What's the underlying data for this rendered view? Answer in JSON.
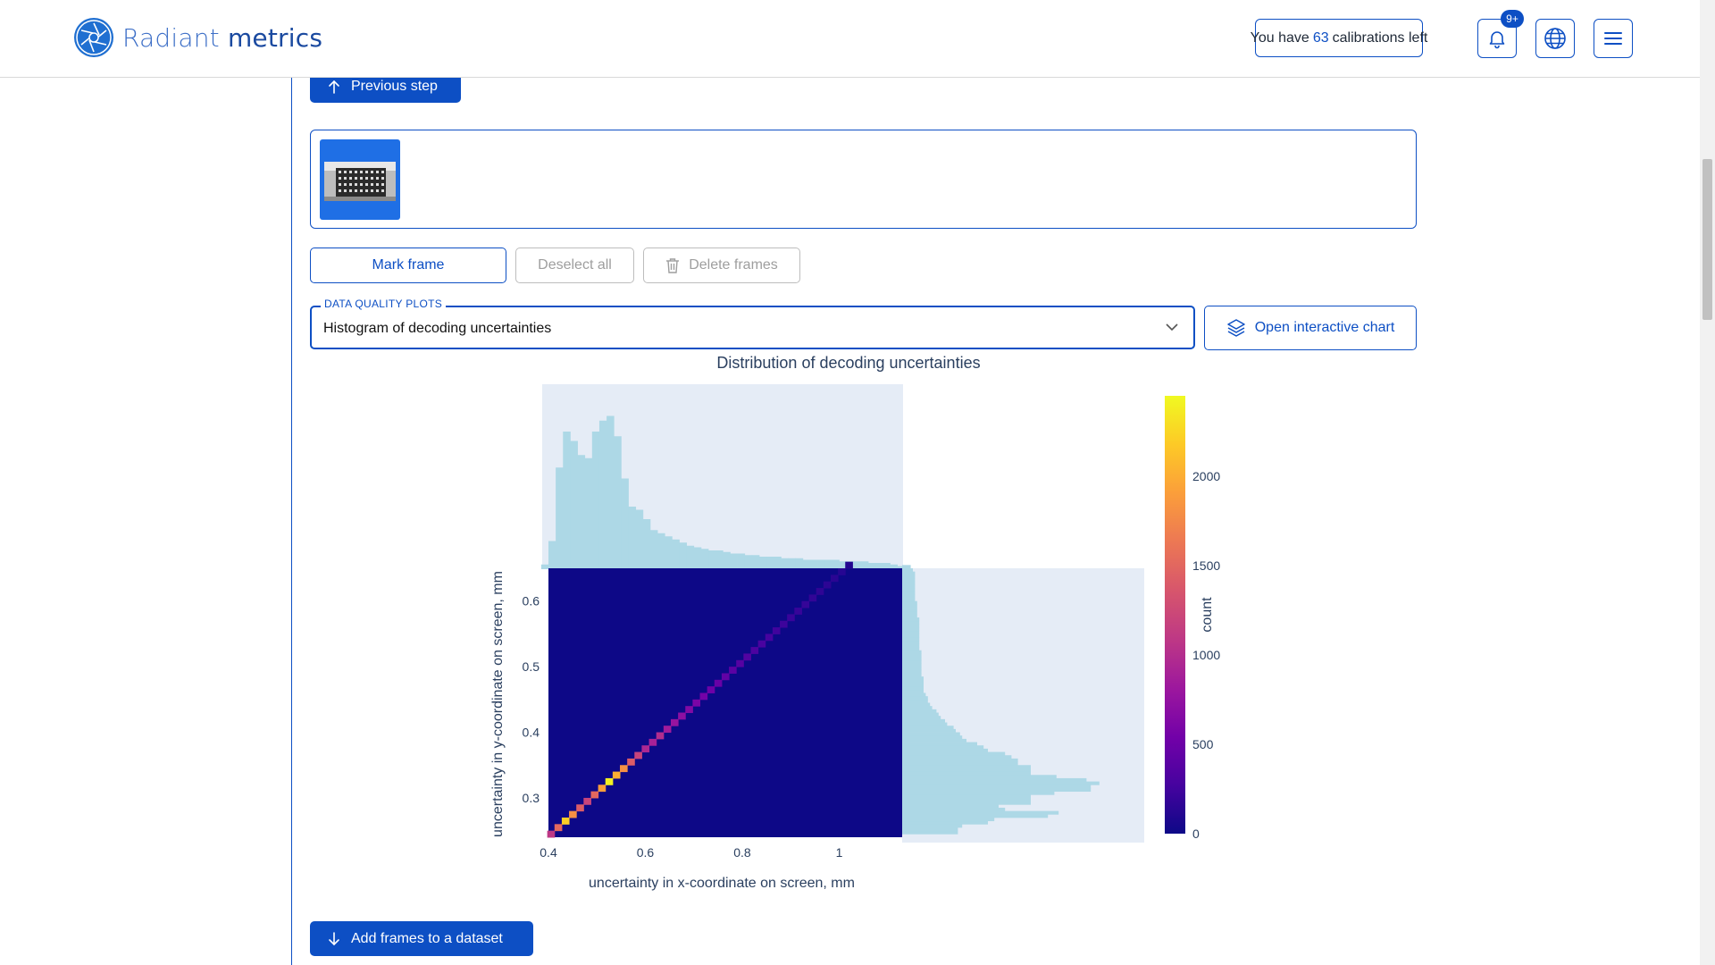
{
  "header": {
    "logo_part1": "Radiant",
    "logo_part2": "metrics",
    "calib_prefix": "You have",
    "calib_count": "63",
    "calib_suffix": "calibrations left",
    "notification_badge": "9+",
    "icons": [
      "logo-shutter-icon",
      "bell-icon",
      "globe-icon",
      "menu-icon"
    ]
  },
  "actions": {
    "previous_step": "Previous step",
    "mark_frame": "Mark frame",
    "deselect_all": "Deselect all",
    "delete_frames": "Delete frames",
    "add_frames": "Add frames to a dataset"
  },
  "plots": {
    "legend": "DATA QUALITY PLOTS",
    "selected": "Histogram of decoding uncertainties",
    "open_interactive": "Open interactive chart"
  },
  "colors": {
    "accent": "#0d4fc4",
    "histogram": "#add8e6",
    "plot_bg": "#e5ecf6",
    "heatmap_low": "#0d0887",
    "heatmap_high": "#f0f921"
  },
  "chart_data": {
    "type": "heatmap",
    "title": "Distribution of decoding uncertainties",
    "xlabel": "uncertainty in x-coordinate on screen, mm",
    "ylabel": "uncertainty in y-coordinate on screen, mm",
    "xlim": [
      0.4,
      1.13
    ],
    "ylim": [
      0.24,
      0.65
    ],
    "x_ticks": [
      "0.4",
      "0.6",
      "0.8",
      "1"
    ],
    "x_tick_values": [
      0.4,
      0.6,
      0.8,
      1.0
    ],
    "y_ticks": [
      "0.3",
      "0.4",
      "0.5",
      "0.6"
    ],
    "y_tick_values": [
      0.3,
      0.4,
      0.5,
      0.6
    ],
    "colorbar": {
      "title": "count",
      "range": [
        0,
        2450
      ],
      "ticks": [
        "0",
        "500",
        "1000",
        "1500",
        "2000"
      ],
      "tick_values": [
        0,
        500,
        1000,
        1500,
        2000
      ]
    },
    "diagonal_cells": [
      {
        "x": 0.405,
        "y": 0.245,
        "count": 1100
      },
      {
        "x": 0.42,
        "y": 0.255,
        "count": 1500
      },
      {
        "x": 0.435,
        "y": 0.265,
        "count": 2200
      },
      {
        "x": 0.45,
        "y": 0.275,
        "count": 1800
      },
      {
        "x": 0.465,
        "y": 0.285,
        "count": 1400
      },
      {
        "x": 0.48,
        "y": 0.295,
        "count": 1200
      },
      {
        "x": 0.495,
        "y": 0.305,
        "count": 1500
      },
      {
        "x": 0.51,
        "y": 0.315,
        "count": 1900
      },
      {
        "x": 0.525,
        "y": 0.325,
        "count": 2400
      },
      {
        "x": 0.54,
        "y": 0.335,
        "count": 2000
      },
      {
        "x": 0.555,
        "y": 0.345,
        "count": 1800
      },
      {
        "x": 0.57,
        "y": 0.355,
        "count": 1400
      },
      {
        "x": 0.585,
        "y": 0.365,
        "count": 1200
      },
      {
        "x": 0.6,
        "y": 0.375,
        "count": 950
      },
      {
        "x": 0.615,
        "y": 0.385,
        "count": 900
      },
      {
        "x": 0.63,
        "y": 0.395,
        "count": 1000
      },
      {
        "x": 0.645,
        "y": 0.405,
        "count": 850
      },
      {
        "x": 0.66,
        "y": 0.415,
        "count": 780
      },
      {
        "x": 0.675,
        "y": 0.425,
        "count": 720
      },
      {
        "x": 0.69,
        "y": 0.435,
        "count": 650
      },
      {
        "x": 0.705,
        "y": 0.445,
        "count": 600
      },
      {
        "x": 0.72,
        "y": 0.455,
        "count": 560
      },
      {
        "x": 0.735,
        "y": 0.465,
        "count": 520
      },
      {
        "x": 0.75,
        "y": 0.475,
        "count": 480
      },
      {
        "x": 0.765,
        "y": 0.485,
        "count": 440
      },
      {
        "x": 0.78,
        "y": 0.495,
        "count": 400
      },
      {
        "x": 0.795,
        "y": 0.505,
        "count": 370
      },
      {
        "x": 0.81,
        "y": 0.515,
        "count": 340
      },
      {
        "x": 0.825,
        "y": 0.525,
        "count": 310
      },
      {
        "x": 0.84,
        "y": 0.535,
        "count": 290
      },
      {
        "x": 0.855,
        "y": 0.545,
        "count": 270
      },
      {
        "x": 0.87,
        "y": 0.555,
        "count": 250
      },
      {
        "x": 0.885,
        "y": 0.565,
        "count": 230
      },
      {
        "x": 0.9,
        "y": 0.575,
        "count": 210
      },
      {
        "x": 0.915,
        "y": 0.585,
        "count": 200
      },
      {
        "x": 0.93,
        "y": 0.595,
        "count": 190
      },
      {
        "x": 0.945,
        "y": 0.605,
        "count": 175
      },
      {
        "x": 0.96,
        "y": 0.615,
        "count": 160
      },
      {
        "x": 0.975,
        "y": 0.625,
        "count": 150
      },
      {
        "x": 0.99,
        "y": 0.635,
        "count": 140
      },
      {
        "x": 1.005,
        "y": 0.645,
        "count": 120
      },
      {
        "x": 1.02,
        "y": 0.655,
        "count": 100
      }
    ],
    "marginal_x": {
      "bin_width": 0.015,
      "x": [
        0.385,
        0.4,
        0.415,
        0.43,
        0.445,
        0.46,
        0.475,
        0.49,
        0.505,
        0.52,
        0.535,
        0.55,
        0.565,
        0.58,
        0.595,
        0.61,
        0.625,
        0.64,
        0.655,
        0.67,
        0.685,
        0.7,
        0.715,
        0.73,
        0.745,
        0.76,
        0.775,
        0.79,
        0.805,
        0.82,
        0.835,
        0.85,
        0.865,
        0.88,
        0.895,
        0.91,
        0.925,
        0.94,
        0.955,
        0.97,
        0.985,
        1.0,
        1.015,
        1.03,
        1.045,
        1.06,
        1.075,
        1.09,
        1.105,
        1.12
      ],
      "values": [
        0.03,
        0.18,
        0.65,
        0.88,
        0.82,
        0.73,
        0.71,
        0.88,
        0.95,
        0.98,
        0.85,
        0.58,
        0.4,
        0.38,
        0.32,
        0.25,
        0.23,
        0.21,
        0.19,
        0.17,
        0.15,
        0.14,
        0.13,
        0.12,
        0.12,
        0.11,
        0.1,
        0.1,
        0.09,
        0.09,
        0.08,
        0.08,
        0.08,
        0.07,
        0.07,
        0.07,
        0.06,
        0.06,
        0.06,
        0.06,
        0.06,
        0.05,
        0.05,
        0.05,
        0.05,
        0.04,
        0.04,
        0.04,
        0.03,
        0.02
      ]
    },
    "marginal_y": {
      "bin_width": 0.005,
      "y": [
        0.245,
        0.25,
        0.255,
        0.26,
        0.265,
        0.27,
        0.275,
        0.28,
        0.285,
        0.29,
        0.295,
        0.3,
        0.305,
        0.31,
        0.315,
        0.32,
        0.325,
        0.33,
        0.335,
        0.34,
        0.345,
        0.35,
        0.355,
        0.36,
        0.365,
        0.37,
        0.375,
        0.38,
        0.385,
        0.39,
        0.395,
        0.4,
        0.405,
        0.41,
        0.415,
        0.42,
        0.425,
        0.43,
        0.435,
        0.44,
        0.445,
        0.45,
        0.455,
        0.46,
        0.465,
        0.47,
        0.475,
        0.48,
        0.485,
        0.49,
        0.495,
        0.5,
        0.505,
        0.51,
        0.515,
        0.52,
        0.525,
        0.53,
        0.535,
        0.54,
        0.545,
        0.55,
        0.555,
        0.56,
        0.565,
        0.57,
        0.575,
        0.58,
        0.585,
        0.59,
        0.595,
        0.6,
        0.605,
        0.61,
        0.615,
        0.62,
        0.625,
        0.63,
        0.635,
        0.64,
        0.645,
        0.65
      ],
      "values": [
        0.26,
        0.26,
        0.28,
        0.4,
        0.43,
        0.68,
        0.73,
        0.48,
        0.45,
        0.6,
        0.6,
        0.6,
        0.71,
        0.88,
        0.88,
        0.92,
        0.86,
        0.72,
        0.6,
        0.6,
        0.6,
        0.54,
        0.54,
        0.51,
        0.48,
        0.4,
        0.38,
        0.35,
        0.3,
        0.28,
        0.27,
        0.25,
        0.24,
        0.21,
        0.2,
        0.18,
        0.17,
        0.16,
        0.14,
        0.13,
        0.12,
        0.12,
        0.11,
        0.1,
        0.1,
        0.1,
        0.1,
        0.1,
        0.09,
        0.09,
        0.09,
        0.09,
        0.09,
        0.09,
        0.09,
        0.09,
        0.08,
        0.08,
        0.08,
        0.08,
        0.08,
        0.08,
        0.08,
        0.08,
        0.08,
        0.08,
        0.07,
        0.07,
        0.07,
        0.07,
        0.07,
        0.06,
        0.06,
        0.06,
        0.06,
        0.06,
        0.06,
        0.06,
        0.06,
        0.06,
        0.05,
        0.04
      ]
    }
  }
}
